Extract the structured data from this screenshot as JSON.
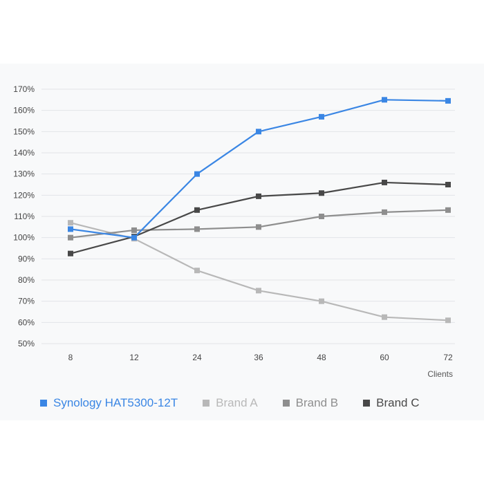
{
  "chart_data": {
    "type": "line",
    "title": "",
    "xlabel": "Clients",
    "ylabel": "",
    "categories": [
      "8",
      "12",
      "24",
      "36",
      "48",
      "60",
      "72"
    ],
    "y_ticks": [
      "50%",
      "60%",
      "70%",
      "80%",
      "90%",
      "100%",
      "110%",
      "120%",
      "130%",
      "140%",
      "150%",
      "160%",
      "170%"
    ],
    "ylim": [
      50,
      170
    ],
    "grid": true,
    "legend_position": "bottom",
    "series": [
      {
        "name": "Synology HAT5300-12T",
        "color": "#3a86e4",
        "values": [
          104,
          100,
          130,
          150,
          157,
          165,
          164.5
        ]
      },
      {
        "name": "Brand A",
        "color": "#b8b8b8",
        "values": [
          107,
          99.5,
          84.5,
          75,
          70,
          62.5,
          61
        ]
      },
      {
        "name": "Brand B",
        "color": "#8e8e8e",
        "values": [
          100,
          103.5,
          104,
          105,
          110,
          112,
          113
        ]
      },
      {
        "name": "Brand C",
        "color": "#484848",
        "values": [
          92.5,
          100.5,
          113,
          119.5,
          121,
          126,
          125
        ]
      }
    ]
  }
}
